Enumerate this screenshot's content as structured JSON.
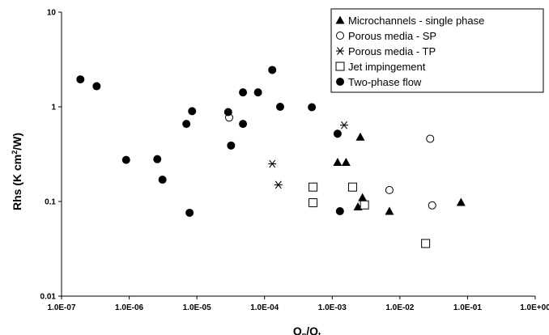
{
  "chart_data": {
    "type": "scatter",
    "x_scale": "log",
    "y_scale": "log",
    "xlim": [
      1e-07,
      1
    ],
    "ylim": [
      0.01,
      10
    ],
    "grid": false,
    "legend_position": "top-right",
    "xlabel_main": "Q",
    "xlabel_sub1": "n",
    "xlabel_mid": "/Q",
    "xlabel_sub2": "t",
    "ylabel_pre": "Rhs (K cm",
    "ylabel_sup": "2",
    "ylabel_post": "/W)",
    "x_ticks": [
      {
        "value": 1e-07,
        "label": "1.0E-07"
      },
      {
        "value": 1e-06,
        "label": "1.0E-06"
      },
      {
        "value": 1e-05,
        "label": "1.0E-05"
      },
      {
        "value": 0.0001,
        "label": "1.0E-04"
      },
      {
        "value": 0.001,
        "label": "1.0E-03"
      },
      {
        "value": 0.01,
        "label": "1.0E-02"
      },
      {
        "value": 0.1,
        "label": "1.0E-01"
      },
      {
        "value": 1,
        "label": "1.0E+00"
      }
    ],
    "y_ticks": [
      {
        "value": 0.01,
        "label": "0.01"
      },
      {
        "value": 0.1,
        "label": "0.1"
      },
      {
        "value": 1,
        "label": "1"
      },
      {
        "value": 10,
        "label": "10"
      }
    ],
    "series": [
      {
        "name": "Microchannels - single phase",
        "marker": "triangle-filled",
        "points": [
          [
            0.0012,
            0.26
          ],
          [
            0.0016,
            0.26
          ],
          [
            0.0026,
            0.48
          ],
          [
            0.0024,
            0.088
          ],
          [
            0.0028,
            0.11
          ],
          [
            0.007,
            0.079
          ],
          [
            0.08,
            0.098
          ]
        ]
      },
      {
        "name": "Porous media - SP",
        "marker": "circle-open",
        "points": [
          [
            3e-05,
            0.77
          ],
          [
            0.007,
            0.132
          ],
          [
            0.028,
            0.46
          ],
          [
            0.03,
            0.091
          ]
        ]
      },
      {
        "name": "Porous media - TP",
        "marker": "asterisk",
        "points": [
          [
            0.00013,
            0.25
          ],
          [
            0.00016,
            0.15
          ],
          [
            0.0015,
            0.64
          ]
        ]
      },
      {
        "name": "Jet impingement",
        "marker": "square-open",
        "points": [
          [
            0.00052,
            0.142
          ],
          [
            0.00052,
            0.097
          ],
          [
            0.002,
            0.142
          ],
          [
            0.003,
            0.092
          ],
          [
            0.024,
            0.036
          ]
        ]
      },
      {
        "name": "Two-phase flow",
        "marker": "circle-filled",
        "points": [
          [
            1.9e-07,
            1.95
          ],
          [
            3.3e-07,
            1.65
          ],
          [
            9e-07,
            0.275
          ],
          [
            2.6e-06,
            0.28
          ],
          [
            3.1e-06,
            0.17
          ],
          [
            7e-06,
            0.66
          ],
          [
            8.5e-06,
            0.9
          ],
          [
            7.8e-06,
            0.076
          ],
          [
            2.9e-05,
            0.88
          ],
          [
            3.2e-05,
            0.39
          ],
          [
            4.8e-05,
            1.42
          ],
          [
            4.8e-05,
            0.66
          ],
          [
            8e-05,
            1.42
          ],
          [
            0.00013,
            2.45
          ],
          [
            0.00017,
            1.0
          ],
          [
            0.0005,
            0.99
          ],
          [
            0.0012,
            0.52
          ],
          [
            0.0013,
            0.079
          ]
        ]
      }
    ]
  }
}
